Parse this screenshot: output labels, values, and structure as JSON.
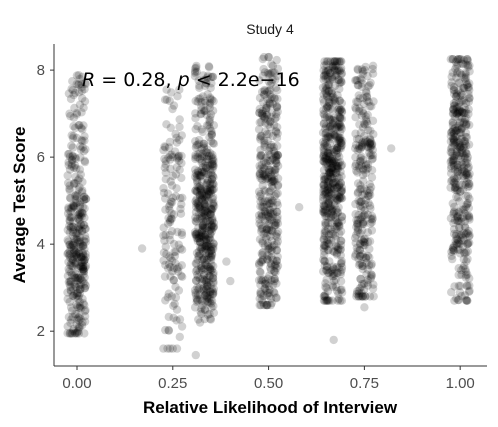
{
  "chart_data": {
    "type": "scatter",
    "title": "Study 4",
    "xlabel": "Relative Likelihood of Interview",
    "ylabel": "Average Test Score",
    "xlim": [
      -0.06,
      1.07
    ],
    "ylim": [
      1.2,
      8.6
    ],
    "x_ticks": [
      "0.00",
      "0.25",
      "0.50",
      "0.75",
      "1.00"
    ],
    "x_tick_values": [
      0.0,
      0.25,
      0.5,
      0.75,
      1.0
    ],
    "y_ticks": [
      "2",
      "4",
      "6",
      "8"
    ],
    "y_tick_values": [
      2,
      4,
      6,
      8
    ],
    "grid": false,
    "point_color": "#000000",
    "point_alpha": 0.18,
    "annotation": {
      "r_symbol": "R",
      "r_value": " = 0.28, ",
      "p_symbol": "p",
      "p_value": " < 2.2e−16"
    },
    "groups": [
      {
        "x": 0.0,
        "n": 360,
        "y_min": 1.95,
        "y_max": 7.9,
        "y_center": 3.85,
        "y_spread": 0.95
      },
      {
        "x": 0.25,
        "n": 140,
        "y_min": 1.6,
        "y_max": 7.55,
        "y_center": 4.4,
        "y_spread": 1.3
      },
      {
        "x": 0.333,
        "n": 480,
        "y_min": 2.2,
        "y_max": 8.1,
        "y_center": 4.3,
        "y_spread": 1.2
      },
      {
        "x": 0.5,
        "n": 360,
        "y_min": 2.6,
        "y_max": 8.3,
        "y_center": 5.3,
        "y_spread": 1.4
      },
      {
        "x": 0.667,
        "n": 520,
        "y_min": 2.7,
        "y_max": 8.2,
        "y_center": 5.6,
        "y_spread": 1.5
      },
      {
        "x": 0.75,
        "n": 260,
        "y_min": 2.8,
        "y_max": 8.1,
        "y_center": 5.4,
        "y_spread": 1.5
      },
      {
        "x": 1.0,
        "n": 380,
        "y_min": 2.7,
        "y_max": 8.25,
        "y_center": 5.7,
        "y_spread": 1.4
      }
    ],
    "outliers": [
      {
        "x": 0.17,
        "y": 3.9
      },
      {
        "x": 0.25,
        "y": 1.6
      },
      {
        "x": 0.31,
        "y": 1.45
      },
      {
        "x": 0.39,
        "y": 3.6
      },
      {
        "x": 0.4,
        "y": 3.15
      },
      {
        "x": 0.58,
        "y": 4.85
      },
      {
        "x": 0.67,
        "y": 1.8
      },
      {
        "x": 0.82,
        "y": 6.2
      },
      {
        "x": 0.75,
        "y": 2.55
      },
      {
        "x": 0.74,
        "y": 3.2
      }
    ]
  }
}
